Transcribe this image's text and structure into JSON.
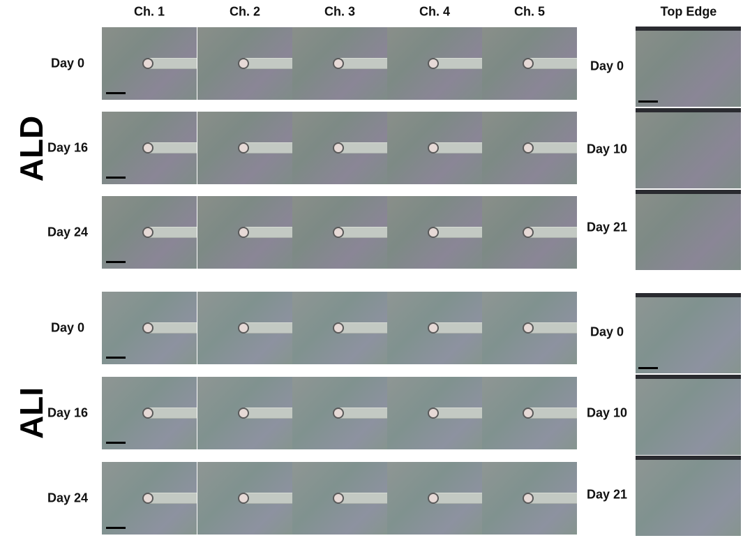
{
  "columns": [
    "Ch. 1",
    "Ch. 2",
    "Ch. 3",
    "Ch. 4",
    "Ch. 5"
  ],
  "side_column": "Top Edge",
  "groups": [
    {
      "label": "ALD",
      "rows": [
        "Day 0",
        "Day 16",
        "Day 24"
      ],
      "side_rows": [
        "Day 0",
        "Day 10",
        "Day 21"
      ]
    },
    {
      "label": "ALI",
      "rows": [
        "Day 0",
        "Day 16",
        "Day 24"
      ],
      "side_rows": [
        "Day 0",
        "Day 10",
        "Day 21"
      ]
    }
  ]
}
